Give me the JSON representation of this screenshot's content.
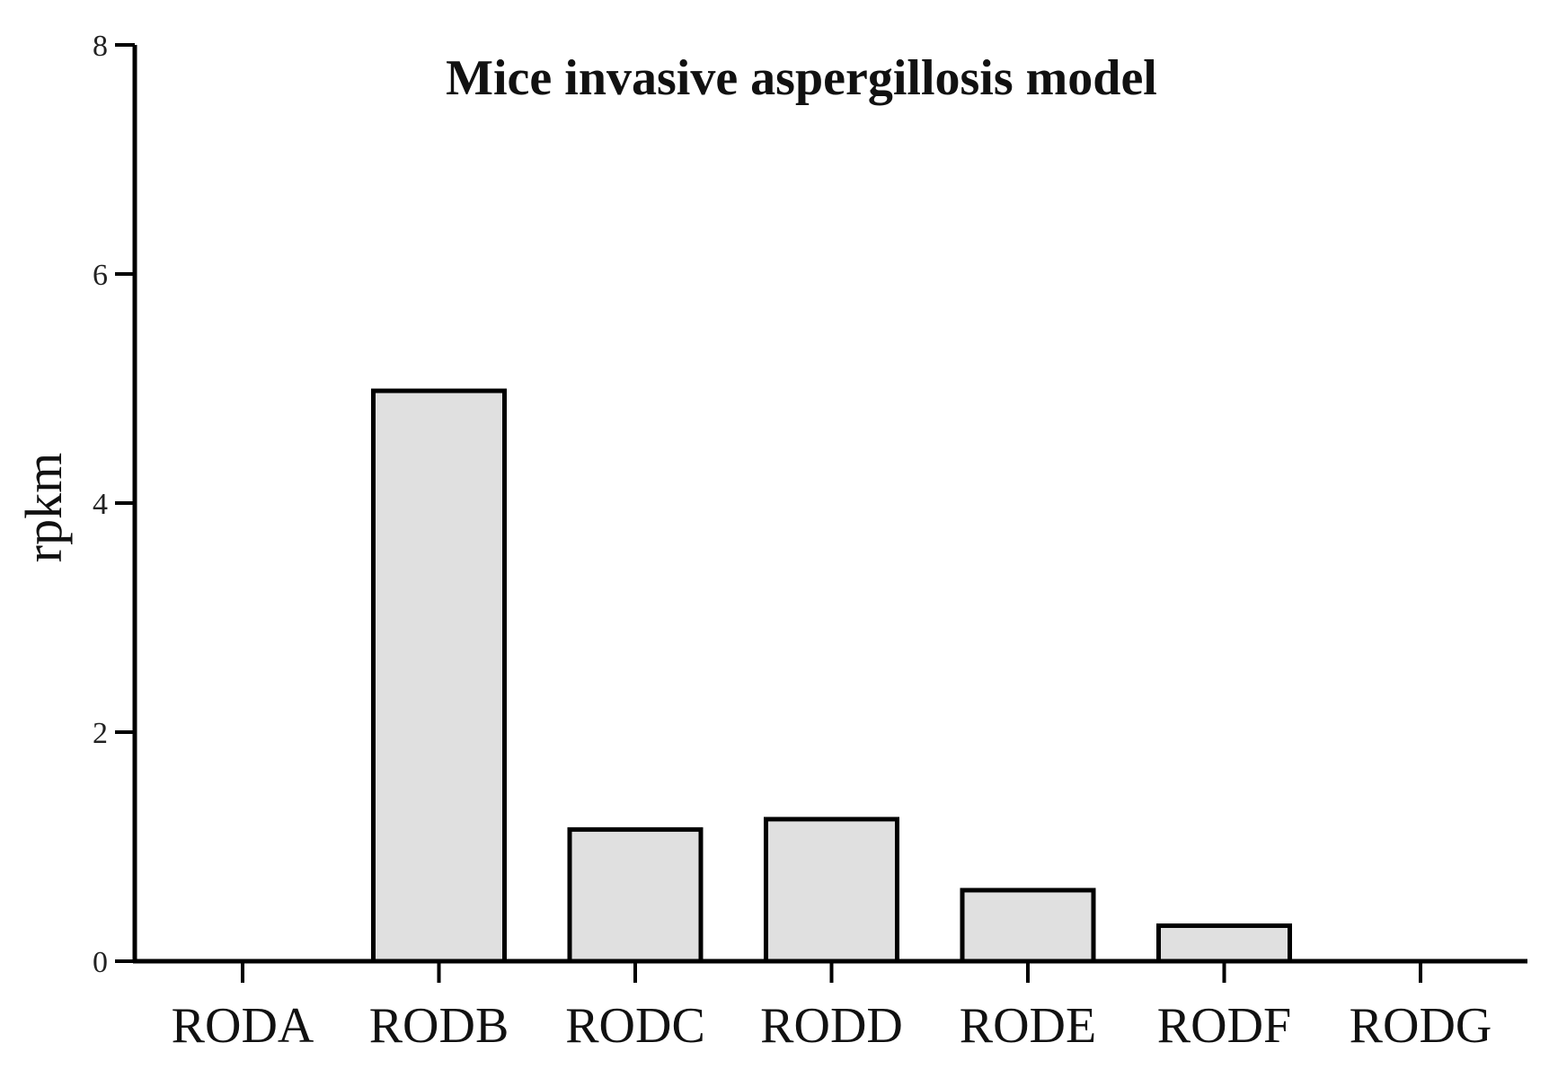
{
  "chart_data": {
    "type": "bar",
    "title": "Mice invasive aspergillosis model",
    "xlabel": "",
    "ylabel": "rpkm",
    "categories": [
      "RODA",
      "RODB",
      "RODC",
      "RODD",
      "RODE",
      "RODF",
      "RODG"
    ],
    "values": [
      0,
      4.98,
      1.15,
      1.24,
      0.62,
      0.31,
      0
    ],
    "ylim": [
      0,
      8
    ],
    "yticks": [
      "0",
      "2",
      "4",
      "6",
      "8"
    ],
    "grid": false,
    "legend": "none",
    "colors": {
      "bar_fill": "#e0e0e0",
      "bar_stroke": "#000000",
      "axis": "#000000"
    }
  }
}
